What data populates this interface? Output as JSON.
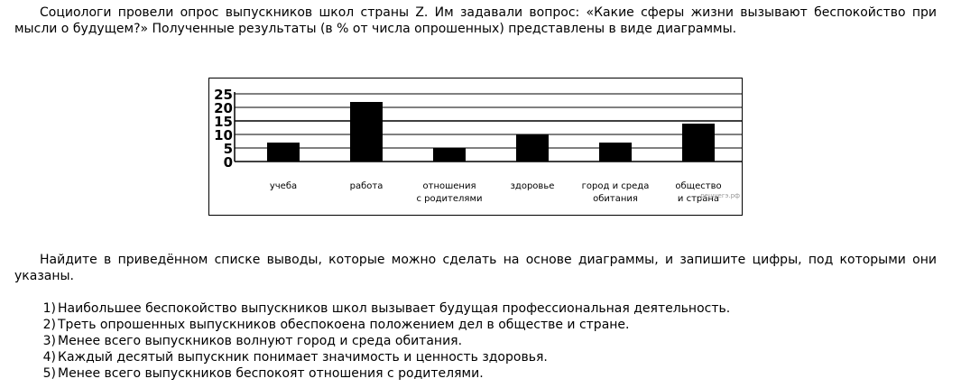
{
  "intro": "Социологи провели опрос выпускников школ страны Z. Им задавали вопрос: «Какие сферы жизни вызывают беспокойство при мысли о будущем?» Полученные результаты (в % от числа опрошенных) представлены в виде диаграммы.",
  "task": "Найдите в приведённом списке выводы, которые можно сделать на основе диаграммы, и запишите цифры, под которыми они указаны.",
  "options": [
    {
      "num": "1)",
      "text": "Наибольшее беспокойство выпускников школ вызывает будущая профессиональная деятельность."
    },
    {
      "num": "2)",
      "text": "Треть опрошенных выпускников обеспокоена положением дел в обществе и стране."
    },
    {
      "num": "3)",
      "text": "Менее всего выпускников волнуют город и среда обитания."
    },
    {
      "num": "4)",
      "text": "Каждый десятый выпускник понимает значимость и ценность здоровья."
    },
    {
      "num": "5)",
      "text": "Менее всего выпускников беспокоят отношения с родителями."
    }
  ],
  "chart_data": {
    "type": "bar",
    "categories": [
      [
        "учеба"
      ],
      [
        "работа"
      ],
      [
        "отношения",
        "с родителями"
      ],
      [
        "здоровье"
      ],
      [
        "город и среда",
        "обитания"
      ],
      [
        "общество",
        "и страна"
      ]
    ],
    "values": [
      7,
      22,
      5,
      10,
      7,
      14
    ],
    "yticks": [
      "25",
      "20",
      "15",
      "10",
      "5",
      "0"
    ],
    "ylim": [
      0,
      25
    ],
    "grid": true,
    "bar_color": "#000000",
    "watermark": "решуегэ.рф"
  }
}
